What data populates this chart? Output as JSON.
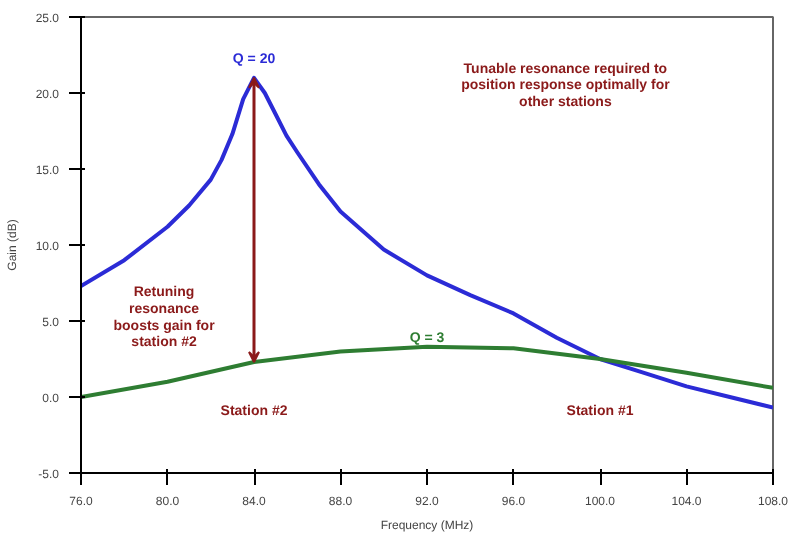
{
  "chart_data": {
    "type": "line",
    "xlabel": "Frequency (MHz)",
    "ylabel": "Gain (dB)",
    "xlim": [
      76,
      108
    ],
    "ylim": [
      -5,
      25
    ],
    "xticks": [
      {
        "value": 76,
        "label": "76.0"
      },
      {
        "value": 80,
        "label": "80.0"
      },
      {
        "value": 84,
        "label": "84.0"
      },
      {
        "value": 88,
        "label": "88.0"
      },
      {
        "value": 92,
        "label": "92.0"
      },
      {
        "value": 96,
        "label": "96.0"
      },
      {
        "value": 100,
        "label": "100.0"
      },
      {
        "value": 104,
        "label": "104.0"
      },
      {
        "value": 108,
        "label": "108.0"
      }
    ],
    "yticks": [
      {
        "value": -5,
        "label": "-5.0"
      },
      {
        "value": 0,
        "label": "0.0"
      },
      {
        "value": 5,
        "label": "5.0"
      },
      {
        "value": 10,
        "label": "10.0"
      },
      {
        "value": 15,
        "label": "15.0"
      },
      {
        "value": 20,
        "label": "20.0"
      },
      {
        "value": 25,
        "label": "25.0"
      }
    ],
    "grid": false,
    "series": [
      {
        "color": "#2b2bd6",
        "x": [
          76,
          78,
          80,
          81,
          82,
          82.5,
          83,
          83.5,
          84,
          84.5,
          85,
          85.5,
          86,
          87,
          88,
          90,
          92,
          94,
          96,
          98,
          100,
          102,
          104,
          106,
          108
        ],
        "values": [
          7.3,
          9.0,
          11.2,
          12.6,
          14.3,
          15.6,
          17.3,
          19.6,
          21.0,
          20.0,
          18.6,
          17.2,
          16.1,
          14.0,
          12.2,
          9.7,
          8.0,
          6.7,
          5.5,
          3.9,
          2.5,
          1.6,
          0.7,
          0.0,
          -0.7
        ]
      },
      {
        "color": "#2e7d32",
        "x": [
          76,
          80,
          84,
          88,
          92,
          96,
          100,
          104,
          108
        ],
        "values": [
          0.0,
          1.0,
          2.3,
          3.0,
          3.3,
          3.2,
          2.5,
          1.6,
          0.6
        ]
      }
    ],
    "annotations": [
      "Q = 20",
      "Q = 3",
      "Retuning\nresonance\nboosts gain for\nstation #2",
      "Station #2",
      "Station #1",
      "Tunable resonance required to\nposition response optimally for\nother stations"
    ]
  }
}
